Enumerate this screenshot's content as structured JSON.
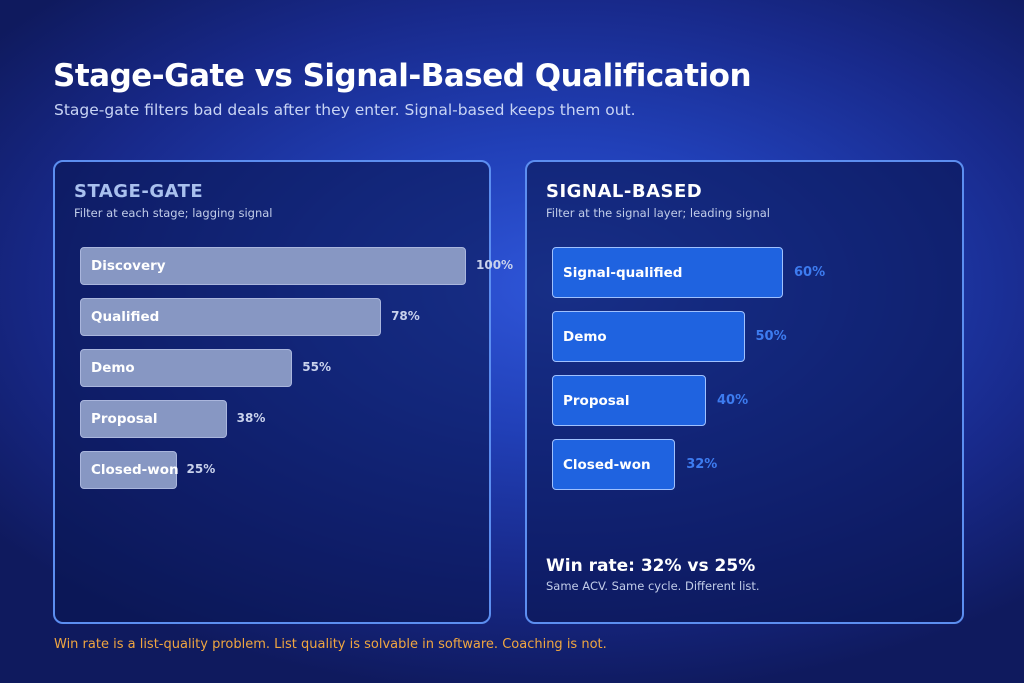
{
  "header": {
    "title": "Stage-Gate vs Signal-Based Qualification",
    "subtitle": "Stage-gate filters bad deals after they enter. Signal-based keeps them out."
  },
  "footer": {
    "note": "Win rate is a list-quality problem. List quality is solvable in software. Coaching is not."
  },
  "colors": {
    "left_bar": "#8797c3",
    "right_bar": "#1f63e0",
    "panel_border": "#5c8ef0",
    "footnote": "#f0a640"
  },
  "chart_data": [
    {
      "type": "bar",
      "orientation": "horizontal",
      "title": "STAGE-GATE",
      "subtitle": "Filter at each stage; lagging signal",
      "categories": [
        "Discovery",
        "Qualified",
        "Demo",
        "Proposal",
        "Closed-won"
      ],
      "values": [
        100,
        78,
        55,
        38,
        25
      ],
      "value_labels": [
        "100%",
        "78%",
        "55%",
        "38%",
        "25%"
      ],
      "xlim": [
        0,
        100
      ]
    },
    {
      "type": "bar",
      "orientation": "horizontal",
      "title": "SIGNAL-BASED",
      "subtitle": "Filter at the signal layer; leading signal",
      "categories": [
        "Signal-qualified",
        "Demo",
        "Proposal",
        "Closed-won"
      ],
      "values": [
        60,
        50,
        40,
        32
      ],
      "value_labels": [
        "60%",
        "50%",
        "40%",
        "32%"
      ],
      "xlim": [
        0,
        60
      ],
      "summary": {
        "headline": "Win rate: 32% vs 25%",
        "detail": "Same ACV. Same cycle. Different list."
      }
    }
  ]
}
